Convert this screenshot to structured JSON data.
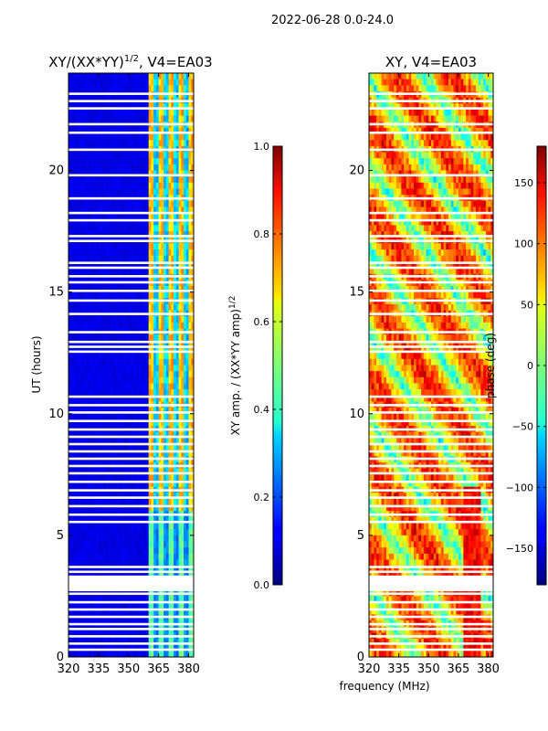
{
  "figure_title": "2022-06-28 0.0-24.0",
  "chart_data": [
    {
      "type": "heatmap",
      "title_text": "XY/(XX*YY)",
      "title_superscript": "1/2",
      "title_suffix": ", V4=EA03",
      "xlabel": "",
      "ylabel": "UT (hours)",
      "xlim": [
        320,
        382.5
      ],
      "ylim": [
        0,
        24
      ],
      "xticks": [
        "320",
        "335",
        "350",
        "365",
        "380"
      ],
      "xtick_values": [
        320,
        335,
        350,
        365,
        380
      ],
      "yticks": [
        "0",
        "5",
        "10",
        "15",
        "20"
      ],
      "ytick_values": [
        0,
        5,
        10,
        15,
        20
      ],
      "masked_data_start_mhz": 320,
      "signal_band_start_mhz": 360,
      "colorbar": {
        "label_text": "XY amp. / (XX*YY amp)",
        "label_superscript": "1/2",
        "range": [
          0.0,
          1.0
        ],
        "ticks": [
          "0.0",
          "0.2",
          "0.4",
          "0.6",
          "0.8",
          "1.0"
        ],
        "tick_values": [
          0.0,
          0.2,
          0.4,
          0.6,
          0.8,
          1.0
        ]
      },
      "gap_hours": [
        0.3,
        0.55,
        0.85,
        1.15,
        1.35,
        1.65,
        1.95,
        2.25,
        2.6,
        2.75,
        2.85,
        2.95,
        3.05,
        3.15,
        3.5,
        3.7,
        5.55,
        5.85,
        6.2,
        6.55,
        6.85,
        7.2,
        7.55,
        7.85,
        8.15,
        8.45,
        8.75,
        9.05,
        9.35,
        9.7,
        10.05,
        10.35,
        10.7,
        12.55,
        12.75,
        12.95,
        13.35,
        14.1,
        14.65,
        15.05,
        15.4,
        15.65,
        16.0,
        16.2,
        17.1,
        17.3,
        17.95,
        18.25,
        18.85,
        19.8,
        20.85,
        21.55,
        21.9,
        22.55,
        22.85,
        23.15
      ]
    },
    {
      "type": "heatmap",
      "title_text": "XY, V4=EA03",
      "xlabel": "frequency (MHz)",
      "ylabel": "",
      "xlim": [
        320,
        382.5
      ],
      "ylim": [
        0,
        24
      ],
      "xticks": [
        "320",
        "335",
        "350",
        "365",
        "380"
      ],
      "xtick_values": [
        320,
        335,
        350,
        365,
        380
      ],
      "yticks": [
        "0",
        "5",
        "10",
        "15",
        "20"
      ],
      "ytick_values": [
        0,
        5,
        10,
        15,
        20
      ],
      "colorbar": {
        "label_text": "phase (deg)",
        "range": [
          -180,
          180
        ],
        "ticks": [
          "−150",
          "−100",
          "−50",
          "0",
          "50",
          "100",
          "150"
        ],
        "tick_values": [
          -150,
          -100,
          -50,
          0,
          50,
          100,
          150
        ]
      },
      "gap_hours": [
        0.3,
        0.55,
        0.85,
        1.15,
        1.35,
        1.65,
        1.95,
        2.25,
        2.6,
        2.75,
        2.85,
        2.95,
        3.05,
        3.15,
        3.5,
        3.7,
        5.55,
        5.85,
        6.2,
        6.55,
        6.85,
        7.2,
        7.55,
        7.85,
        8.15,
        8.45,
        8.75,
        9.05,
        9.35,
        9.7,
        10.05,
        10.35,
        10.7,
        12.55,
        12.75,
        12.95,
        13.35,
        14.1,
        14.65,
        15.05,
        15.4,
        15.65,
        16.0,
        16.2,
        17.1,
        17.3,
        17.95,
        18.25,
        18.85,
        19.8,
        20.85,
        21.55,
        21.9,
        22.55,
        22.85,
        23.15
      ]
    }
  ]
}
